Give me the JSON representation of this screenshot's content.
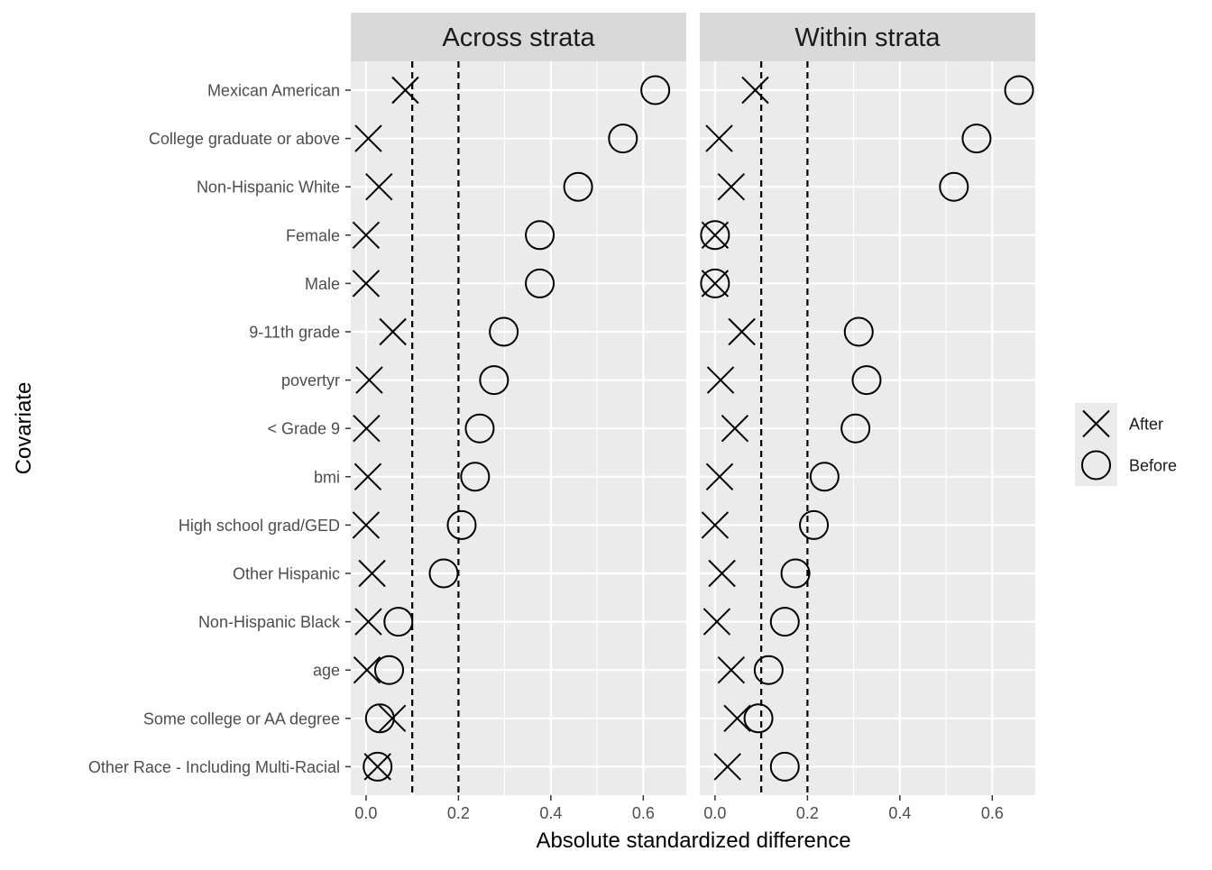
{
  "chart_data": {
    "type": "scatter",
    "xlabel": "Absolute standardized difference",
    "ylabel": "Covariate",
    "xlim": [
      -0.033,
      0.693
    ],
    "xticks": [
      0.0,
      0.2,
      0.4,
      0.6
    ],
    "xtick_labels": [
      "0.0",
      "0.2",
      "0.4",
      "0.6"
    ],
    "reference_lines": [
      0.1,
      0.2
    ],
    "grid": true,
    "legend_position": "right",
    "categories": [
      "Mexican American",
      "College graduate or above",
      "Non-Hispanic White",
      "Female",
      "Male",
      "9-11th grade",
      "povertyr",
      "< Grade 9",
      "bmi",
      "High school grad/GED",
      "Other Hispanic",
      "Non-Hispanic Black",
      "age",
      "Some college or AA degree",
      "Other Race - Including Multi-Racial"
    ],
    "panels": [
      {
        "title": "Across strata",
        "series": [
          {
            "name": "After",
            "marker": "x",
            "values": [
              0.085,
              0.005,
              0.028,
              0.0,
              0.0,
              0.058,
              0.007,
              0.001,
              0.004,
              0.0,
              0.013,
              0.005,
              0.002,
              0.057,
              0.025
            ]
          },
          {
            "name": "Before",
            "marker": "circle",
            "values": [
              0.626,
              0.556,
              0.459,
              0.376,
              0.376,
              0.298,
              0.277,
              0.246,
              0.236,
              0.207,
              0.168,
              0.07,
              0.05,
              0.03,
              0.025
            ]
          }
        ]
      },
      {
        "title": "Within strata",
        "series": [
          {
            "name": "After",
            "marker": "x",
            "values": [
              0.087,
              0.009,
              0.035,
              0.0,
              0.0,
              0.058,
              0.012,
              0.043,
              0.01,
              0.0,
              0.015,
              0.004,
              0.035,
              0.048,
              0.027
            ]
          },
          {
            "name": "Before",
            "marker": "circle",
            "values": [
              0.658,
              0.566,
              0.517,
              0.0,
              0.0,
              0.311,
              0.328,
              0.304,
              0.237,
              0.214,
              0.174,
              0.151,
              0.116,
              0.094,
              0.151
            ]
          }
        ]
      }
    ],
    "legend": [
      {
        "name": "After",
        "marker": "x"
      },
      {
        "name": "Before",
        "marker": "circle"
      }
    ],
    "colors": {
      "panel_bg": "#ebebeb",
      "strip_bg": "#d9d9d9",
      "grid": "#ffffff",
      "marker": "#000000",
      "tick_label": "#4d4d4d",
      "text": "#1a1a1a"
    }
  }
}
